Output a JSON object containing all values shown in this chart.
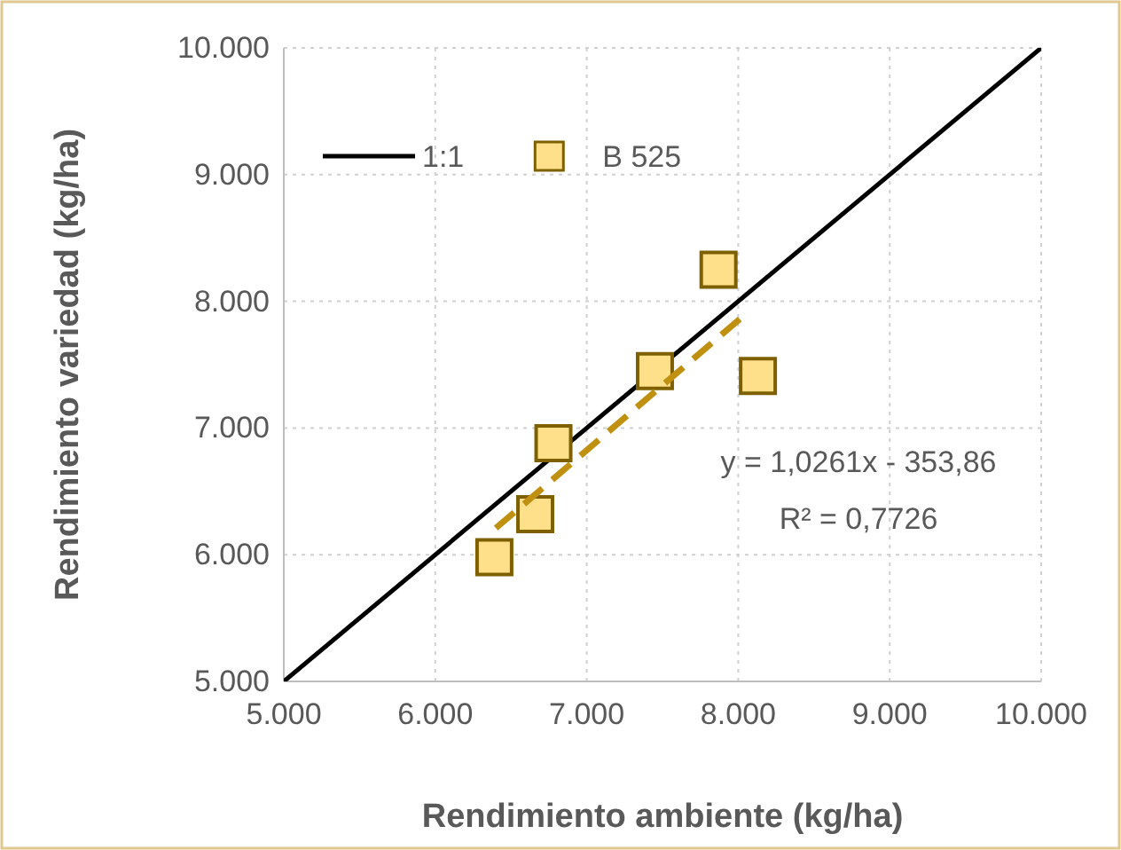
{
  "chart_data": {
    "type": "scatter",
    "xlabel": "Rendimiento ambiente (kg/ha)",
    "ylabel": "Rendimiento variedad (kg/ha)",
    "xlim": [
      5000,
      10000
    ],
    "ylim": [
      5000,
      10000
    ],
    "xticks": [
      {
        "value": 5000,
        "label": "5.000"
      },
      {
        "value": 6000,
        "label": "6.000"
      },
      {
        "value": 7000,
        "label": "7.000"
      },
      {
        "value": 8000,
        "label": "8.000"
      },
      {
        "value": 9000,
        "label": "9.000"
      },
      {
        "value": 10000,
        "label": "10.000"
      }
    ],
    "yticks": [
      {
        "value": 5000,
        "label": "5.000"
      },
      {
        "value": 6000,
        "label": "6.000"
      },
      {
        "value": 7000,
        "label": "7.000"
      },
      {
        "value": 8000,
        "label": "8.000"
      },
      {
        "value": 9000,
        "label": "9.000"
      },
      {
        "value": 10000,
        "label": "10.000"
      }
    ],
    "grid": true,
    "legend": "top left",
    "marker": "square",
    "series": [
      {
        "name": "1:1",
        "type": "line",
        "color": "#000000",
        "x": [
          5000,
          10000
        ],
        "values": [
          5000,
          10000
        ],
        "marker": "none",
        "line_style": "solid"
      },
      {
        "name": "B 525",
        "color": "#ffe08a",
        "x": [
          6390,
          6660,
          6780,
          7450,
          7870,
          8130
        ],
        "values": [
          5980,
          6320,
          6880,
          7450,
          8250,
          7410
        ]
      },
      {
        "type": "line",
        "color": "#c09010",
        "x": [
          6400,
          8010
        ],
        "values": [
          6210,
          7860
        ],
        "marker": "none",
        "line_style": "dashed"
      }
    ],
    "annotations": [
      "y = 1,0261x - 353,86",
      "R² = 0,7726"
    ]
  }
}
